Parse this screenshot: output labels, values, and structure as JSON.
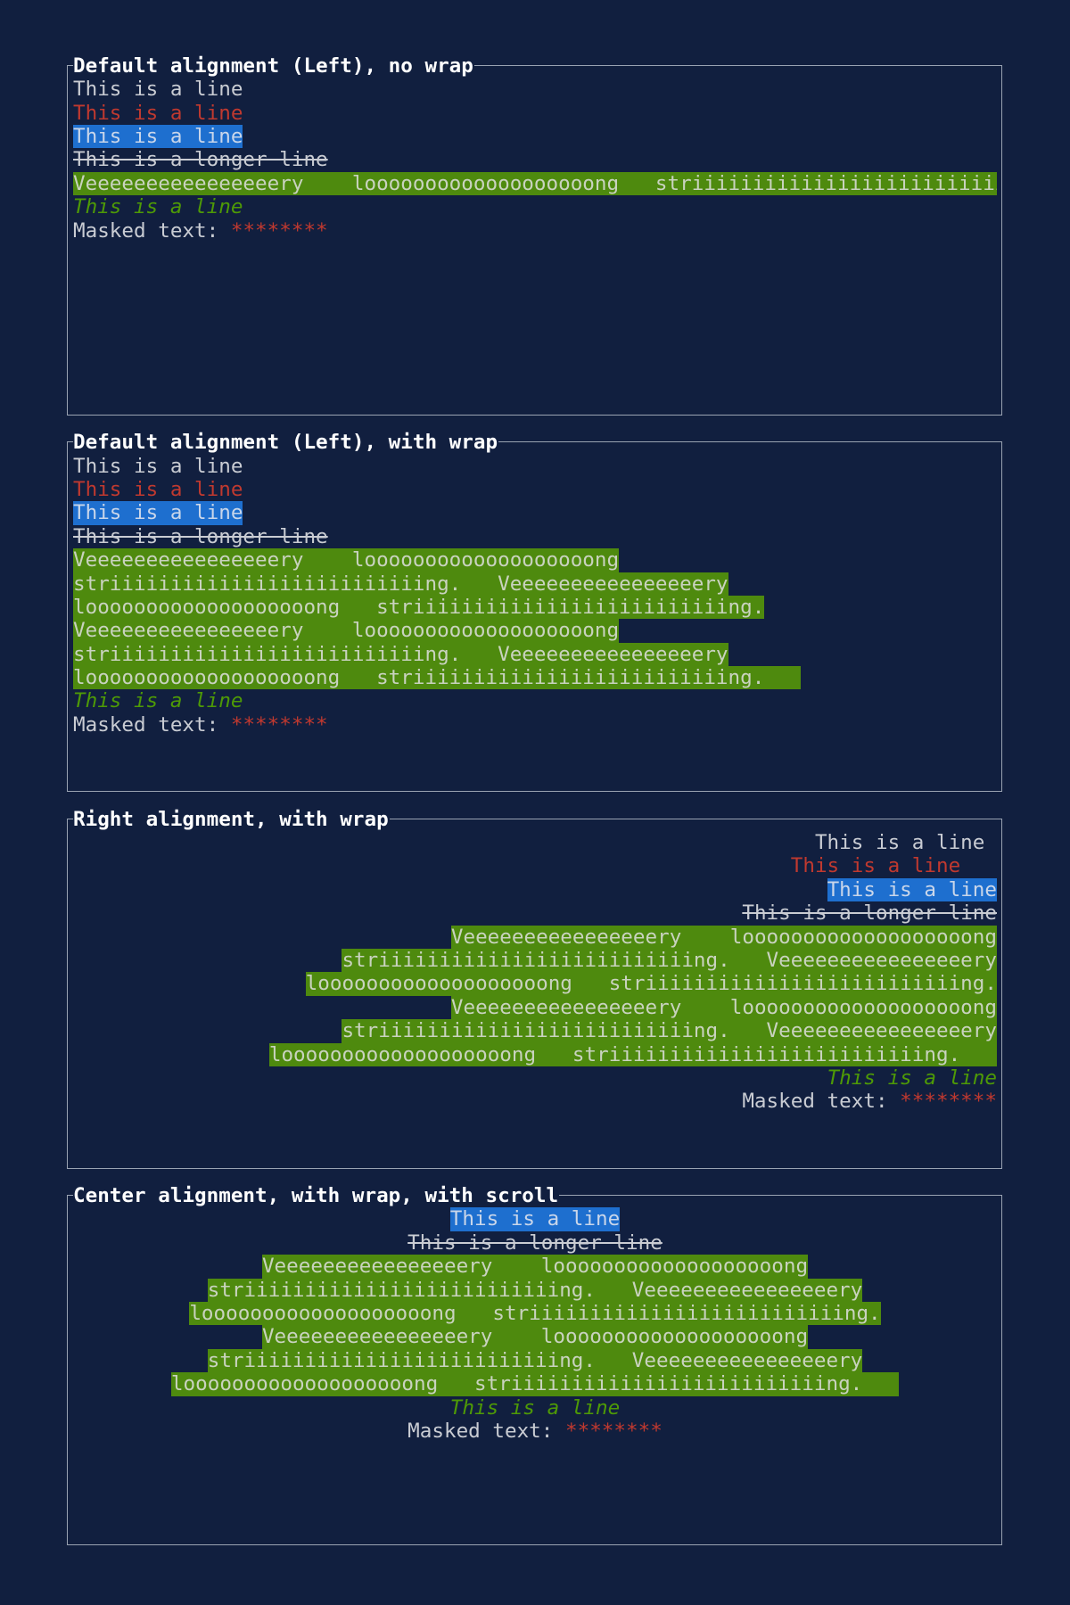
{
  "colors": {
    "background": "#111f3f",
    "border": "#9aa3b2",
    "text": "#c9ccd3",
    "red": "#c0392f",
    "blue_bg": "#1e6fcf",
    "green_bg": "#4e8a0e",
    "green_fg": "#4e9a06"
  },
  "panels": [
    {
      "title": "Default alignment (Left), no wrap",
      "align": "left",
      "lines": [
        [
          {
            "text": "This is a line ",
            "style": "plain"
          }
        ],
        [
          {
            "text": "This is a line   ",
            "style": "red"
          }
        ],
        [
          {
            "text": "This is a line",
            "style": "blue"
          }
        ],
        [
          {
            "text": "This is a longer line",
            "style": "crossed"
          }
        ],
        [
          {
            "text": "Veeeeeeeeeeeeeeeery    looooooooooooooooooong   striiiiiiiiiiiiiiiiiiiiiiiiii",
            "style": "green-bg"
          }
        ],
        [
          {
            "text": "This is a line",
            "style": "green-italic"
          }
        ],
        [
          {
            "text": "Masked text: ",
            "style": "plain"
          },
          {
            "text": "********",
            "style": "red"
          }
        ]
      ]
    },
    {
      "title": "Default alignment (Left), with wrap",
      "align": "left",
      "lines": [
        [
          {
            "text": "This is a line ",
            "style": "plain"
          }
        ],
        [
          {
            "text": "This is a line   ",
            "style": "red"
          }
        ],
        [
          {
            "text": "This is a line",
            "style": "blue"
          }
        ],
        [
          {
            "text": "This is a longer line",
            "style": "crossed"
          }
        ],
        [
          {
            "text": "Veeeeeeeeeeeeeeeery    looooooooooooooooooong",
            "style": "green-bg"
          }
        ],
        [
          {
            "text": "striiiiiiiiiiiiiiiiiiiiiiiiiing.   Veeeeeeeeeeeeeeeery",
            "style": "green-bg"
          }
        ],
        [
          {
            "text": "looooooooooooooooooong   striiiiiiiiiiiiiiiiiiiiiiiiiing.",
            "style": "green-bg"
          }
        ],
        [
          {
            "text": "Veeeeeeeeeeeeeeeery    looooooooooooooooooong",
            "style": "green-bg"
          }
        ],
        [
          {
            "text": "striiiiiiiiiiiiiiiiiiiiiiiiiing.   Veeeeeeeeeeeeeeeery",
            "style": "green-bg"
          }
        ],
        [
          {
            "text": "looooooooooooooooooong   striiiiiiiiiiiiiiiiiiiiiiiiiing.   ",
            "style": "green-bg"
          }
        ],
        [
          {
            "text": "This is a line",
            "style": "green-italic"
          }
        ],
        [
          {
            "text": "Masked text: ",
            "style": "plain"
          },
          {
            "text": "********",
            "style": "red"
          }
        ]
      ]
    },
    {
      "title": "Right alignment, with wrap",
      "align": "right",
      "lines": [
        [
          {
            "text": "This is a line ",
            "style": "plain"
          }
        ],
        [
          {
            "text": "This is a line   ",
            "style": "red"
          }
        ],
        [
          {
            "text": "This is a line",
            "style": "blue"
          }
        ],
        [
          {
            "text": "This is a longer line",
            "style": "crossed"
          }
        ],
        [
          {
            "text": "Veeeeeeeeeeeeeeeery    looooooooooooooooooong",
            "style": "green-bg"
          }
        ],
        [
          {
            "text": "striiiiiiiiiiiiiiiiiiiiiiiiiing.   Veeeeeeeeeeeeeeeery",
            "style": "green-bg"
          }
        ],
        [
          {
            "text": "looooooooooooooooooong   striiiiiiiiiiiiiiiiiiiiiiiiiing.",
            "style": "green-bg"
          }
        ],
        [
          {
            "text": "Veeeeeeeeeeeeeeeery    looooooooooooooooooong",
            "style": "green-bg"
          }
        ],
        [
          {
            "text": "striiiiiiiiiiiiiiiiiiiiiiiiiing.   Veeeeeeeeeeeeeeeery",
            "style": "green-bg"
          }
        ],
        [
          {
            "text": "looooooooooooooooooong   striiiiiiiiiiiiiiiiiiiiiiiiiing.   ",
            "style": "green-bg"
          }
        ],
        [
          {
            "text": "This is a line",
            "style": "green-italic"
          }
        ],
        [
          {
            "text": "Masked text: ",
            "style": "plain"
          },
          {
            "text": "********",
            "style": "red"
          }
        ]
      ]
    },
    {
      "title": "Center alignment, with wrap, with scroll",
      "align": "center",
      "lines": [
        [
          {
            "text": "This is a line",
            "style": "blue"
          }
        ],
        [
          {
            "text": "This is a longer line",
            "style": "crossed"
          }
        ],
        [
          {
            "text": "Veeeeeeeeeeeeeeeery    looooooooooooooooooong",
            "style": "green-bg"
          }
        ],
        [
          {
            "text": "striiiiiiiiiiiiiiiiiiiiiiiiiing.   Veeeeeeeeeeeeeeeery",
            "style": "green-bg"
          }
        ],
        [
          {
            "text": "looooooooooooooooooong   striiiiiiiiiiiiiiiiiiiiiiiiiing.",
            "style": "green-bg"
          }
        ],
        [
          {
            "text": "Veeeeeeeeeeeeeeeery    looooooooooooooooooong",
            "style": "green-bg"
          }
        ],
        [
          {
            "text": "striiiiiiiiiiiiiiiiiiiiiiiiiing.   Veeeeeeeeeeeeeeeery",
            "style": "green-bg"
          }
        ],
        [
          {
            "text": "looooooooooooooooooong   striiiiiiiiiiiiiiiiiiiiiiiiiing.   ",
            "style": "green-bg"
          }
        ],
        [
          {
            "text": "This is a line",
            "style": "green-italic"
          }
        ],
        [
          {
            "text": "Masked text: ",
            "style": "plain"
          },
          {
            "text": "********",
            "style": "red"
          }
        ]
      ]
    }
  ]
}
